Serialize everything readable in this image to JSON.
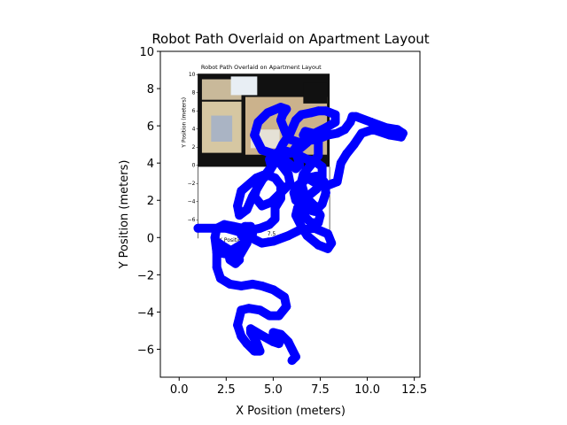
{
  "chart_data": {
    "type": "scatter",
    "title": "Robot Path Overlaid on Apartment Layout",
    "xlabel": "X Position (meters)",
    "ylabel": "Y Position (meters)",
    "xlim": [
      -1.0,
      12.8
    ],
    "ylim": [
      -7.5,
      10.0
    ],
    "xticks": [
      0.0,
      2.5,
      5.0,
      7.5,
      10.0,
      12.5
    ],
    "xtick_labels": [
      "0.0",
      "2.5",
      "5.0",
      "7.5",
      "10.0",
      "12.5"
    ],
    "yticks": [
      -6,
      -4,
      -2,
      0,
      2,
      4,
      6,
      8,
      10
    ],
    "ytick_labels": [
      "−6",
      "−4",
      "−2",
      "0",
      "2",
      "4",
      "6",
      "8",
      "10"
    ],
    "grid": false,
    "legend": "none",
    "series_color": "#0000ff",
    "inset_image": {
      "extent": [
        1.0,
        8.0,
        3.8,
        8.8
      ],
      "title": "Robot Path Overlaid on Apartment Layout",
      "ylabel": "Y Position (meters)",
      "xlabel": "X Position (meters)",
      "yticks": [
        "10",
        "8",
        "6",
        "4",
        "2",
        "0",
        "−2",
        "−4",
        "−6"
      ],
      "xticks": [
        "5.0",
        "7.5",
        "10.0"
      ]
    },
    "path": {
      "x": [
        1.0,
        2.5,
        3.2,
        3.6,
        3.2,
        2.0,
        1.9,
        2.0,
        2.4,
        2.9,
        3.8,
        4.3,
        4.8,
        5.1,
        5.1,
        5.4,
        5.4,
        5.1,
        4.6,
        4.1,
        3.3,
        3.1,
        3.2,
        3.6,
        3.9,
        4.3,
        4.6,
        4.9,
        4.8,
        5.0,
        5.4,
        5.8,
        6.2,
        6.4,
        6.3,
        6.1,
        6.4,
        5.8,
        5.6,
        5.4,
        5.5,
        5.7,
        5.4,
        4.7,
        4.2,
        4.0,
        4.4,
        5.3,
        6.2,
        6.8,
        7.2,
        7.8,
        8.3,
        8.3,
        7.8,
        7.4,
        7.0,
        6.5,
        6.2,
        5.9,
        5.5,
        5.2,
        5.0,
        4.7,
        4.2,
        4.0,
        4.4,
        4.9,
        5.4,
        5.9,
        5.8,
        5.5,
        5.2,
        5.1,
        5.5,
        6.2,
        6.8,
        7.2,
        7.6,
        7.6,
        7.3,
        6.7,
        6.2,
        6.1,
        6.3,
        6.8,
        7.3,
        7.7,
        7.8,
        7.6,
        7.2,
        6.8,
        6.5,
        6.4,
        6.6,
        7.0,
        7.4,
        7.4,
        7.1,
        6.7,
        6.6,
        6.9,
        7.4,
        7.9,
        8.4,
        8.8,
        9.1,
        9.2,
        9.4,
        10.2,
        11.0,
        11.6,
        11.9,
        11.8,
        11.2,
        10.3,
        9.7,
        9.3,
        8.9,
        8.6,
        8.5,
        8.4,
        7.9,
        7.3,
        6.8,
        6.5,
        6.7,
        7.2,
        7.5,
        7.4,
        7.0,
        6.6,
        6.3,
        6.2,
        6.5,
        6.8,
        7.4,
        7.9,
        8.1,
        7.9,
        7.2,
        6.4,
        5.8,
        5.0,
        4.4,
        4.0,
        3.5,
        3.5,
        3.8,
        3.9,
        3.6,
        3.1,
        2.6,
        2.7,
        3.0,
        3.2,
        2.9,
        2.4,
        2.1,
        2.0,
        2.0,
        2.2,
        2.7,
        3.3,
        3.9,
        4.4,
        5.0,
        5.6,
        5.7,
        5.3,
        4.8,
        4.3,
        3.7,
        3.3,
        3.1,
        3.3,
        3.6,
        4.0,
        4.3,
        4.1,
        3.8,
        3.8,
        4.3,
        5.0,
        5.3,
        5.0,
        5.0,
        5.4,
        5.8,
        6.0,
        6.2,
        6.0
      ],
      "y": [
        0.5,
        0.5,
        0.3,
        -0.3,
        -1.0,
        -0.8,
        0.0,
        0.5,
        0.7,
        0.6,
        0.4,
        0.5,
        0.7,
        1.0,
        1.6,
        2.1,
        2.8,
        3.2,
        3.4,
        3.2,
        2.5,
        1.7,
        1.2,
        1.5,
        2.2,
        2.9,
        3.4,
        3.8,
        4.2,
        4.4,
        4.3,
        4.0,
        3.7,
        3.9,
        4.3,
        4.7,
        5.1,
        5.3,
        5.8,
        6.3,
        6.6,
        6.9,
        7.0,
        6.7,
        6.2,
        5.5,
        4.7,
        4.4,
        4.6,
        5.1,
        5.6,
        5.9,
        6.2,
        6.6,
        6.8,
        6.8,
        6.7,
        6.6,
        6.3,
        5.6,
        5.0,
        4.4,
        3.9,
        3.4,
        2.9,
        2.2,
        1.7,
        1.9,
        2.4,
        2.9,
        3.4,
        3.8,
        4.2,
        4.5,
        4.7,
        4.5,
        4.2,
        4.1,
        3.8,
        3.2,
        2.6,
        2.1,
        2.0,
        2.4,
        2.8,
        3.2,
        3.3,
        3.0,
        2.4,
        1.8,
        1.4,
        1.5,
        1.9,
        2.6,
        3.4,
        3.9,
        4.4,
        5.1,
        5.6,
        5.7,
        5.5,
        5.2,
        5.3,
        5.5,
        5.6,
        5.8,
        6.2,
        6.5,
        6.5,
        6.2,
        5.9,
        5.8,
        5.6,
        5.4,
        5.5,
        5.8,
        5.6,
        5.0,
        4.5,
        4.0,
        3.5,
        3.0,
        2.8,
        2.9,
        3.2,
        2.9,
        2.2,
        1.7,
        1.2,
        0.8,
        0.8,
        1.2,
        1.6,
        1.2,
        0.6,
        0.1,
        -0.4,
        -0.6,
        -0.3,
        0.2,
        0.5,
        0.4,
        0.1,
        -0.2,
        -0.3,
        -0.1,
        0.3,
        0.6,
        0.6,
        0.2,
        -0.2,
        -0.5,
        -0.8,
        -1.2,
        -1.4,
        -1.2,
        -0.8,
        -0.5,
        -0.3,
        -0.8,
        -1.6,
        -2.2,
        -2.5,
        -2.6,
        -2.5,
        -2.6,
        -2.8,
        -3.2,
        -3.7,
        -4.2,
        -4.2,
        -3.9,
        -3.8,
        -3.9,
        -4.7,
        -5.3,
        -5.7,
        -6.1,
        -6.1,
        -5.6,
        -5.1,
        -4.9,
        -5.2,
        -5.6,
        -5.7,
        -5.4,
        -5.1,
        -5.2,
        -5.6,
        -6.0,
        -6.4,
        -6.6
      ]
    }
  }
}
